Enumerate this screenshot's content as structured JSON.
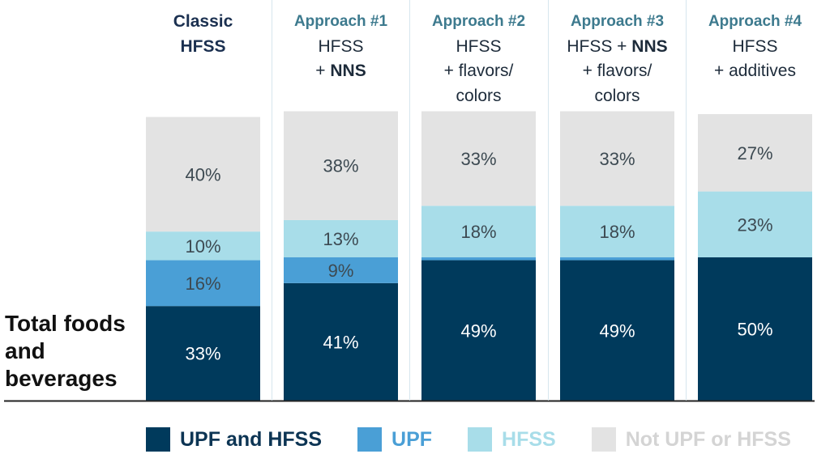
{
  "chart_data": {
    "type": "stacked-bar",
    "ylabel": "Total foods and beverages",
    "ylim": [
      0,
      100
    ],
    "categories": [
      {
        "title": "Classic HFSS",
        "title_lines": [
          "Classic",
          "HFSS"
        ],
        "lines": []
      },
      {
        "title": "Approach #1",
        "lines": [
          [
            {
              "t": "HFSS",
              "b": false
            }
          ],
          [
            {
              "t": "+ ",
              "b": false
            },
            {
              "t": "NNS",
              "b": true
            }
          ]
        ]
      },
      {
        "title": "Approach #2",
        "lines": [
          [
            {
              "t": "HFSS",
              "b": false
            }
          ],
          [
            {
              "t": "+ flavors/",
              "b": false
            }
          ],
          [
            {
              "t": "colors",
              "b": false
            }
          ]
        ]
      },
      {
        "title": "Approach #3",
        "lines": [
          [
            {
              "t": "HFSS + ",
              "b": false
            },
            {
              "t": "NNS",
              "b": true
            }
          ],
          [
            {
              "t": "+ flavors/",
              "b": false
            }
          ],
          [
            {
              "t": "colors",
              "b": false
            }
          ]
        ]
      },
      {
        "title": "Approach #4",
        "lines": [
          [
            {
              "t": "HFSS",
              "b": false
            }
          ],
          [
            {
              "t": "+ additives",
              "b": false
            }
          ]
        ]
      }
    ],
    "series": [
      {
        "name": "UPF and HFSS",
        "color": "#003a5c",
        "values": [
          33,
          41,
          49,
          49,
          50
        ],
        "labels": [
          "33%",
          "41%",
          "49%",
          "49%",
          "50%"
        ]
      },
      {
        "name": "UPF",
        "color": "#4a9fd6",
        "values": [
          16,
          9,
          1,
          1,
          0
        ],
        "labels": [
          "16%",
          "9%",
          "",
          "",
          ""
        ]
      },
      {
        "name": "HFSS",
        "color": "#a8dde9",
        "values": [
          10,
          13,
          18,
          18,
          23
        ],
        "labels": [
          "10%",
          "13%",
          "18%",
          "18%",
          "23%"
        ]
      },
      {
        "name": "Not UPF or HFSS",
        "color": "#e3e3e3",
        "values": [
          40,
          38,
          33,
          33,
          27
        ],
        "labels": [
          "40%",
          "38%",
          "33%",
          "33%",
          "27%"
        ]
      }
    ],
    "legend_text_colors": [
      "#0d3554",
      "#4a9fd6",
      "#a8dde9",
      "#d4d4d4"
    ],
    "legend_position": "bottom",
    "grid": false
  }
}
